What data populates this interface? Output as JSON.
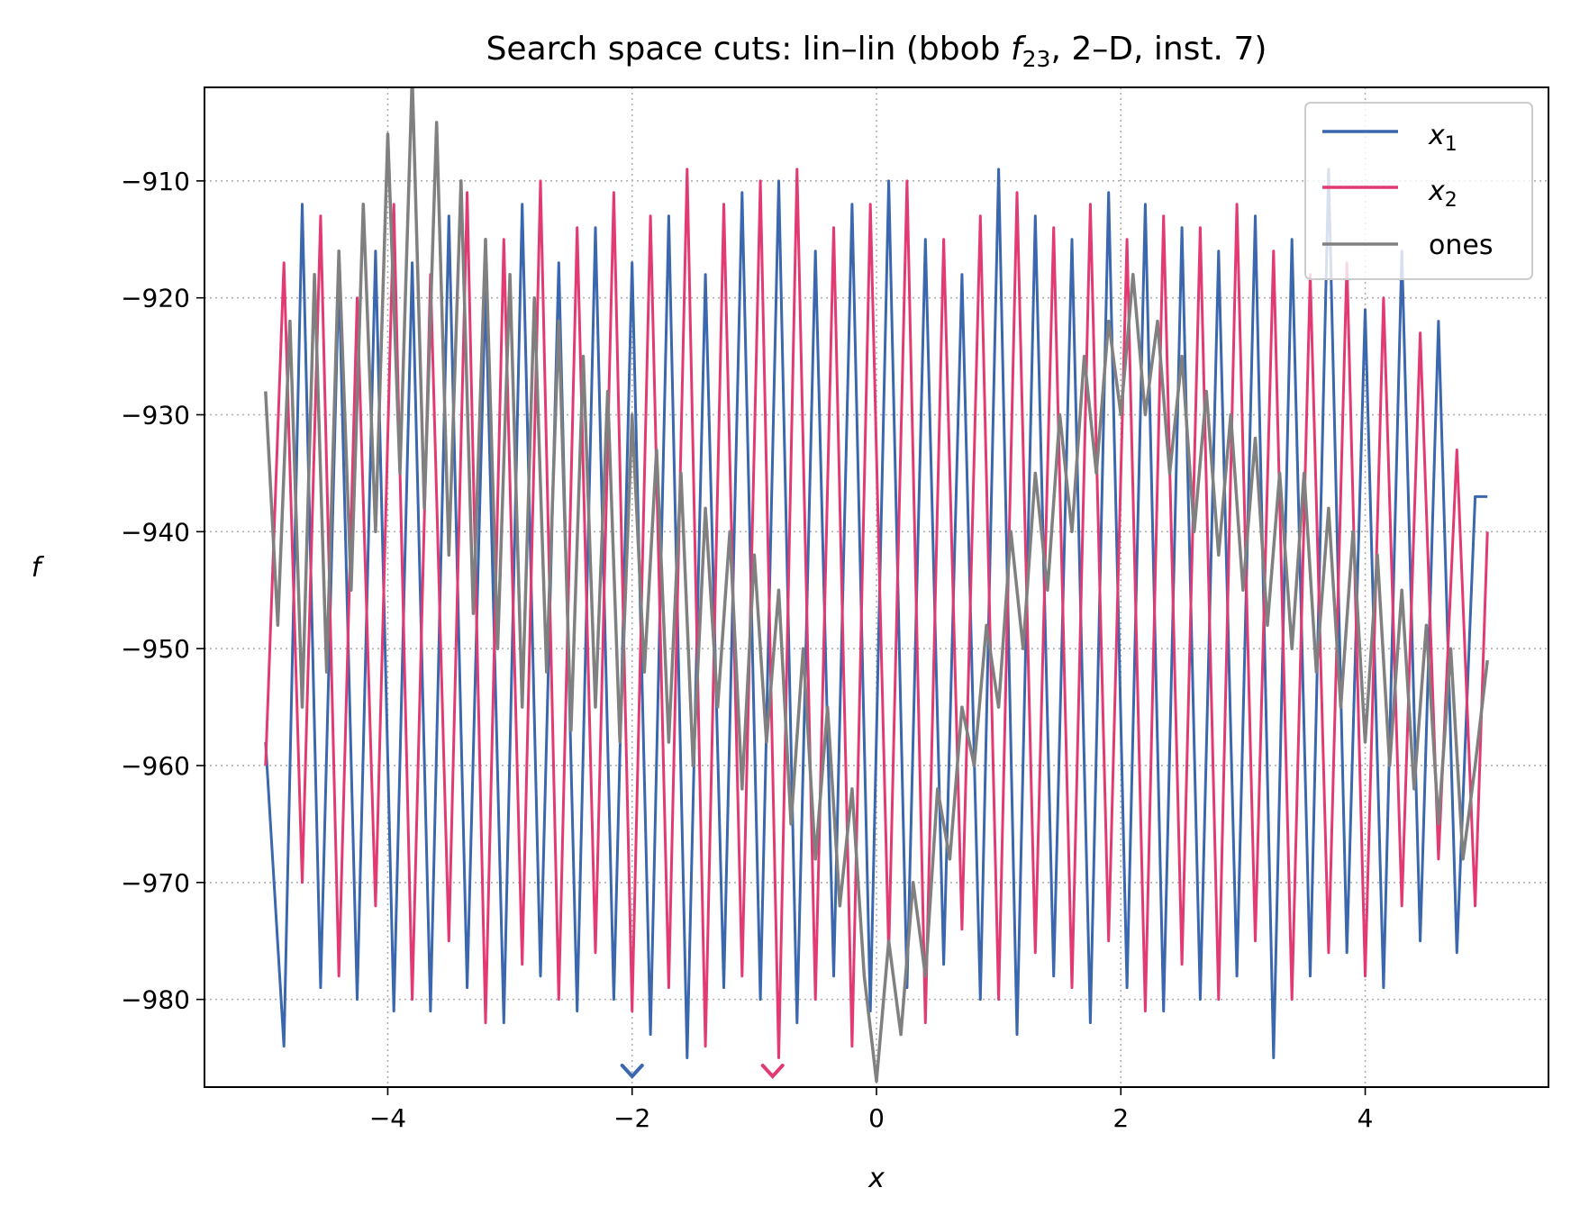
{
  "chart_data": {
    "type": "line",
    "title": "Search space cuts: lin–lin (bbob f₂₃, 2–D, inst. 7)",
    "title_parts": {
      "prefix": "Search space cuts: lin–lin (bbob ",
      "function_symbol": "f",
      "function_subscript": "23",
      "suffix": ", 2–D, inst. 7)"
    },
    "xlabel": "x",
    "ylabel": "f",
    "xlim": [
      -5.5,
      5.5
    ],
    "ylim": [
      -987.5,
      -902
    ],
    "xticks": [
      -4,
      -2,
      0,
      2,
      4
    ],
    "xtick_labels": [
      "−4",
      "−2",
      "0",
      "2",
      "4"
    ],
    "yticks": [
      -910,
      -920,
      -930,
      -940,
      -950,
      -960,
      -970,
      -980
    ],
    "ytick_labels": [
      "−910",
      "−920",
      "−930",
      "−940",
      "−950",
      "−960",
      "−970",
      "−980"
    ],
    "grid": true,
    "legend_position": "top-right",
    "series": [
      {
        "name": "x₁",
        "legend_symbol": "x",
        "legend_subscript": "1",
        "color": "#3a67ae",
        "x": [
          -5.0,
          -4.85,
          -4.7,
          -4.55,
          -4.4,
          -4.25,
          -4.1,
          -3.95,
          -3.8,
          -3.65,
          -3.5,
          -3.35,
          -3.2,
          -3.05,
          -2.9,
          -2.75,
          -2.6,
          -2.45,
          -2.3,
          -2.15,
          -2.0,
          -1.85,
          -1.7,
          -1.55,
          -1.4,
          -1.25,
          -1.1,
          -0.95,
          -0.8,
          -0.65,
          -0.5,
          -0.35,
          -0.2,
          -0.05,
          0.1,
          0.25,
          0.4,
          0.55,
          0.7,
          0.85,
          1.0,
          1.15,
          1.3,
          1.45,
          1.6,
          1.75,
          1.9,
          2.05,
          2.2,
          2.35,
          2.5,
          2.65,
          2.8,
          2.95,
          3.1,
          3.25,
          3.4,
          3.55,
          3.7,
          3.85,
          4.0,
          4.15,
          4.3,
          4.45,
          4.6,
          4.75,
          4.9,
          5.0
        ],
        "y": [
          -958,
          -984,
          -912,
          -979,
          -918,
          -980,
          -916,
          -981,
          -917,
          -981,
          -913,
          -979,
          -919,
          -982,
          -912,
          -978,
          -917,
          -981,
          -914,
          -980,
          -917,
          -983,
          -913,
          -985,
          -918,
          -979,
          -911,
          -980,
          -910,
          -982,
          -916,
          -978,
          -912,
          -981,
          -910,
          -979,
          -915,
          -977,
          -918,
          -980,
          -909,
          -983,
          -913,
          -978,
          -915,
          -982,
          -911,
          -979,
          -912,
          -981,
          -914,
          -980,
          -916,
          -978,
          -913,
          -985,
          -915,
          -978,
          -909,
          -976,
          -921,
          -979,
          -916,
          -975,
          -922,
          -976,
          -937,
          -937
        ]
      },
      {
        "name": "x₂",
        "legend_symbol": "x",
        "legend_subscript": "2",
        "color": "#e23b72",
        "x": [
          -5.0,
          -4.85,
          -4.7,
          -4.55,
          -4.4,
          -4.25,
          -4.1,
          -3.95,
          -3.8,
          -3.65,
          -3.5,
          -3.35,
          -3.2,
          -3.05,
          -2.9,
          -2.75,
          -2.6,
          -2.45,
          -2.3,
          -2.15,
          -2.0,
          -1.85,
          -1.7,
          -1.55,
          -1.4,
          -1.25,
          -1.1,
          -0.95,
          -0.8,
          -0.65,
          -0.5,
          -0.35,
          -0.2,
          -0.05,
          0.1,
          0.25,
          0.4,
          0.55,
          0.7,
          0.85,
          1.0,
          1.15,
          1.3,
          1.45,
          1.6,
          1.75,
          1.9,
          2.05,
          2.2,
          2.35,
          2.5,
          2.65,
          2.8,
          2.95,
          3.1,
          3.25,
          3.4,
          3.55,
          3.7,
          3.85,
          4.0,
          4.15,
          4.3,
          4.45,
          4.6,
          4.75,
          4.9,
          5.0
        ],
        "y": [
          -960,
          -917,
          -970,
          -913,
          -978,
          -920,
          -972,
          -912,
          -980,
          -918,
          -975,
          -911,
          -982,
          -915,
          -977,
          -910,
          -980,
          -914,
          -976,
          -911,
          -981,
          -913,
          -979,
          -909,
          -984,
          -912,
          -978,
          -910,
          -985,
          -909,
          -980,
          -914,
          -984,
          -912,
          -976,
          -910,
          -982,
          -915,
          -974,
          -913,
          -980,
          -911,
          -976,
          -914,
          -979,
          -912,
          -975,
          -915,
          -981,
          -913,
          -977,
          -914,
          -980,
          -912,
          -975,
          -916,
          -980,
          -918,
          -976,
          -917,
          -978,
          -920,
          -972,
          -923,
          -968,
          -933,
          -972,
          -940
        ]
      },
      {
        "name": "ones",
        "color": "#808080",
        "x": [
          -5.0,
          -4.9,
          -4.8,
          -4.7,
          -4.6,
          -4.5,
          -4.4,
          -4.3,
          -4.2,
          -4.1,
          -4.0,
          -3.9,
          -3.8,
          -3.7,
          -3.6,
          -3.5,
          -3.4,
          -3.3,
          -3.2,
          -3.1,
          -3.0,
          -2.9,
          -2.8,
          -2.7,
          -2.6,
          -2.5,
          -2.4,
          -2.3,
          -2.2,
          -2.1,
          -2.0,
          -1.9,
          -1.8,
          -1.7,
          -1.6,
          -1.5,
          -1.4,
          -1.3,
          -1.2,
          -1.1,
          -1.0,
          -0.9,
          -0.8,
          -0.7,
          -0.6,
          -0.5,
          -0.4,
          -0.3,
          -0.2,
          -0.1,
          0.0,
          0.1,
          0.2,
          0.3,
          0.4,
          0.5,
          0.6,
          0.7,
          0.8,
          0.9,
          1.0,
          1.1,
          1.2,
          1.3,
          1.4,
          1.5,
          1.6,
          1.7,
          1.8,
          1.9,
          2.0,
          2.1,
          2.2,
          2.3,
          2.4,
          2.5,
          2.6,
          2.7,
          2.8,
          2.9,
          3.0,
          3.1,
          3.2,
          3.3,
          3.4,
          3.5,
          3.6,
          3.7,
          3.8,
          3.9,
          4.0,
          4.1,
          4.2,
          4.3,
          4.4,
          4.5,
          4.6,
          4.7,
          4.8,
          4.9,
          5.0
        ],
        "y": [
          -928,
          -948,
          -922,
          -955,
          -918,
          -952,
          -916,
          -945,
          -912,
          -940,
          -906,
          -935,
          -901,
          -938,
          -905,
          -942,
          -910,
          -947,
          -915,
          -950,
          -918,
          -955,
          -920,
          -952,
          -922,
          -957,
          -925,
          -955,
          -928,
          -958,
          -930,
          -952,
          -933,
          -958,
          -935,
          -960,
          -938,
          -955,
          -940,
          -962,
          -942,
          -958,
          -945,
          -965,
          -950,
          -968,
          -955,
          -972,
          -962,
          -978,
          -987,
          -975,
          -983,
          -970,
          -978,
          -962,
          -968,
          -955,
          -960,
          -948,
          -955,
          -940,
          -950,
          -935,
          -945,
          -930,
          -940,
          -925,
          -935,
          -922,
          -930,
          -918,
          -930,
          -922,
          -935,
          -925,
          -940,
          -928,
          -942,
          -930,
          -945,
          -932,
          -948,
          -935,
          -950,
          -935,
          -952,
          -938,
          -955,
          -940,
          -958,
          -942,
          -960,
          -945,
          -962,
          -948,
          -965,
          -950,
          -968,
          -960,
          -951
        ]
      }
    ],
    "markers": [
      {
        "x": -2.0,
        "color": "#3a67ae",
        "series": "x₁"
      },
      {
        "x": -0.85,
        "color": "#e23b72",
        "series": "x₂"
      }
    ]
  }
}
